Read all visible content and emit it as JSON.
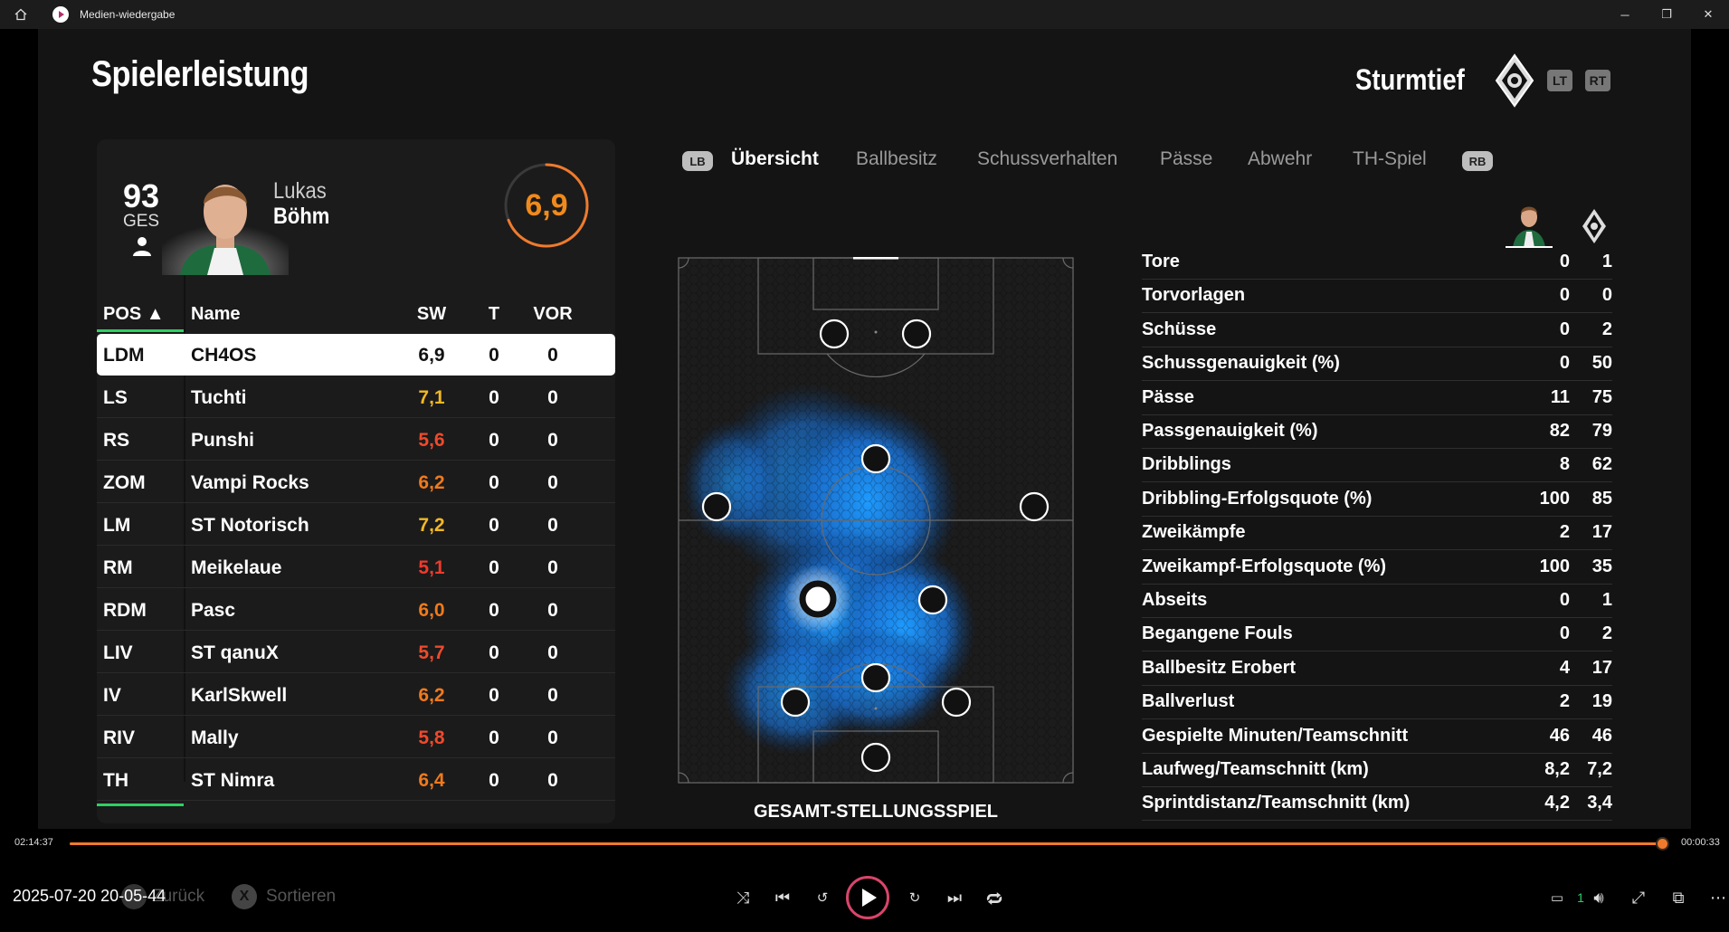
{
  "window": {
    "title": "Medien-wiedergabe"
  },
  "header": {
    "title": "Spielerleistung",
    "team": "Sturmtief",
    "lt_label": "LT",
    "rt_label": "RT"
  },
  "player": {
    "overall": "93",
    "overall_label": "GES",
    "first_name": "Lukas",
    "last_name": "Böhm",
    "rating": "6,9",
    "rating_fraction": 0.69
  },
  "table": {
    "headers": {
      "pos": "POS ▲",
      "name": "Name",
      "sw": "SW",
      "t": "T",
      "vor": "VOR"
    },
    "rows": [
      {
        "pos": "LDM",
        "name": "CH4OS",
        "sw": "6,9",
        "t": "0",
        "vor": "0",
        "sw_color": "#111111"
      },
      {
        "pos": "LS",
        "name": "Tuchti",
        "sw": "7,1",
        "t": "0",
        "vor": "0",
        "sw_color": "#f2b824"
      },
      {
        "pos": "RS",
        "name": "Punshi",
        "sw": "5,6",
        "t": "0",
        "vor": "0",
        "sw_color": "#ef4a2c"
      },
      {
        "pos": "ZOM",
        "name": "Vampi Rocks",
        "sw": "6,2",
        "t": "0",
        "vor": "0",
        "sw_color": "#f07a1c"
      },
      {
        "pos": "LM",
        "name": "ST Notorisch",
        "sw": "7,2",
        "t": "0",
        "vor": "0",
        "sw_color": "#f2b824"
      },
      {
        "pos": "RM",
        "name": "Meikelaue",
        "sw": "5,1",
        "t": "0",
        "vor": "0",
        "sw_color": "#ef3a2c"
      },
      {
        "pos": "RDM",
        "name": "Pasc",
        "sw": "6,0",
        "t": "0",
        "vor": "0",
        "sw_color": "#f07a1c"
      },
      {
        "pos": "LIV",
        "name": "ST qanuX",
        "sw": "5,7",
        "t": "0",
        "vor": "0",
        "sw_color": "#ef4a2c"
      },
      {
        "pos": "IV",
        "name": "KarlSkwell",
        "sw": "6,2",
        "t": "0",
        "vor": "0",
        "sw_color": "#f07a1c"
      },
      {
        "pos": "RIV",
        "name": "Mally",
        "sw": "5,8",
        "t": "0",
        "vor": "0",
        "sw_color": "#ef4a2c"
      },
      {
        "pos": "TH",
        "name": "ST Nimra",
        "sw": "6,4",
        "t": "0",
        "vor": "0",
        "sw_color": "#f07a1c"
      }
    ]
  },
  "tabs": {
    "lb": "LB",
    "rb": "RB",
    "items": [
      "Übersicht",
      "Ballbesitz",
      "Schussverhalten",
      "Pässe",
      "Abwehr",
      "TH-Spiel"
    ]
  },
  "pitch": {
    "label": "GESAMT-STELLUNGSSPIEL"
  },
  "stats": [
    {
      "label": "Tore",
      "player": "0",
      "club": "1"
    },
    {
      "label": "Torvorlagen",
      "player": "0",
      "club": "0"
    },
    {
      "label": "Schüsse",
      "player": "0",
      "club": "2"
    },
    {
      "label": "Schussgenauigkeit (%)",
      "player": "0",
      "club": "50"
    },
    {
      "label": "Pässe",
      "player": "11",
      "club": "75"
    },
    {
      "label": "Passgenauigkeit (%)",
      "player": "82",
      "club": "79"
    },
    {
      "label": "Dribblings",
      "player": "8",
      "club": "62"
    },
    {
      "label": "Dribbling-Erfolgsquote (%)",
      "player": "100",
      "club": "85"
    },
    {
      "label": "Zweikämpfe",
      "player": "2",
      "club": "17"
    },
    {
      "label": "Zweikampf-Erfolgsquote (%)",
      "player": "100",
      "club": "35"
    },
    {
      "label": "Abseits",
      "player": "0",
      "club": "1"
    },
    {
      "label": "Begangene Fouls",
      "player": "0",
      "club": "2"
    },
    {
      "label": "Ballbesitz Erobert",
      "player": "4",
      "club": "17"
    },
    {
      "label": "Ballverlust",
      "player": "2",
      "club": "19"
    },
    {
      "label": "Gespielte Minuten/Teamschnitt",
      "player": "46",
      "club": "46"
    },
    {
      "label": "Laufweg/Teamschnitt (km)",
      "player": "8,2",
      "club": "7,2"
    },
    {
      "label": "Sprintdistanz/Teamschnitt (km)",
      "player": "4,2",
      "club": "3,4"
    }
  ],
  "media": {
    "time_elapsed": "02:14:37",
    "time_remaining": "00:00:33",
    "progress": 0.9966,
    "timestamp": "2025-07-20 20-05-44",
    "back_label": "Zurück",
    "sort_label": "Sortieren",
    "x_label": "X",
    "volume_label": "1"
  },
  "colors": {
    "accent_orange": "#f07a2c",
    "accent_green": "#2ed162",
    "heat_blue": "#1e90ff"
  }
}
